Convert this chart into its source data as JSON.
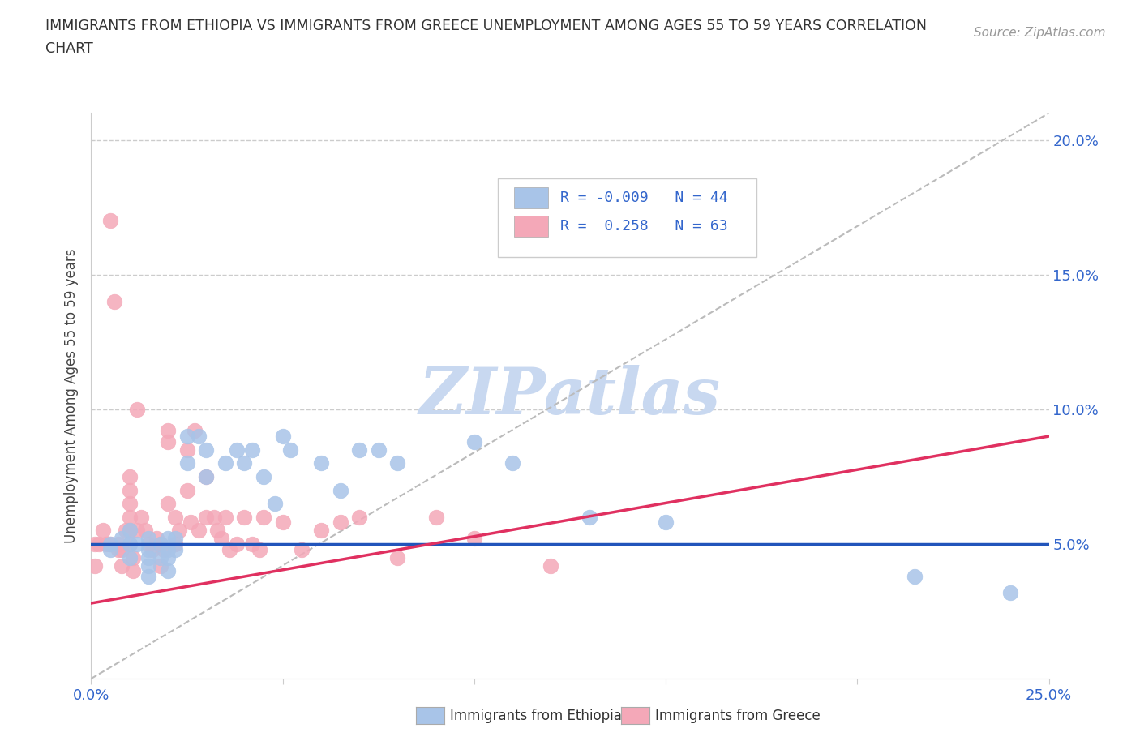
{
  "title_line1": "IMMIGRANTS FROM ETHIOPIA VS IMMIGRANTS FROM GREECE UNEMPLOYMENT AMONG AGES 55 TO 59 YEARS CORRELATION",
  "title_line2": "CHART",
  "source": "Source: ZipAtlas.com",
  "ylabel": "Unemployment Among Ages 55 to 59 years",
  "xlim": [
    0.0,
    0.25
  ],
  "ylim": [
    0.0,
    0.21
  ],
  "xticks": [
    0.0,
    0.05,
    0.1,
    0.15,
    0.2,
    0.25
  ],
  "yticks": [
    0.05,
    0.1,
    0.15,
    0.2
  ],
  "ytick_labels": [
    "5.0%",
    "10.0%",
    "15.0%",
    "20.0%"
  ],
  "xtick_labels_bottom": [
    "0.0%",
    "",
    "",
    "",
    "",
    "25.0%"
  ],
  "ethiopia_color": "#A8C4E8",
  "greece_color": "#F4A8B8",
  "ethiopia_line_color": "#2255BB",
  "greece_line_color": "#E03060",
  "diag_color": "#BBBBBB",
  "watermark": "ZIPatlas",
  "watermark_color": "#C8D8F0",
  "legend_label_ethiopia": "Immigrants from Ethiopia",
  "legend_label_greece": "Immigrants from Greece",
  "ethiopia_x": [
    0.005,
    0.005,
    0.008,
    0.01,
    0.01,
    0.01,
    0.012,
    0.015,
    0.015,
    0.015,
    0.015,
    0.015,
    0.018,
    0.018,
    0.02,
    0.02,
    0.02,
    0.02,
    0.022,
    0.022,
    0.025,
    0.025,
    0.028,
    0.03,
    0.03,
    0.035,
    0.038,
    0.04,
    0.042,
    0.045,
    0.048,
    0.05,
    0.052,
    0.06,
    0.065,
    0.07,
    0.075,
    0.08,
    0.1,
    0.11,
    0.13,
    0.15,
    0.215,
    0.24
  ],
  "ethiopia_y": [
    0.05,
    0.048,
    0.052,
    0.055,
    0.05,
    0.045,
    0.05,
    0.052,
    0.048,
    0.045,
    0.042,
    0.038,
    0.05,
    0.045,
    0.052,
    0.048,
    0.045,
    0.04,
    0.052,
    0.048,
    0.08,
    0.09,
    0.09,
    0.085,
    0.075,
    0.08,
    0.085,
    0.08,
    0.085,
    0.075,
    0.065,
    0.09,
    0.085,
    0.08,
    0.07,
    0.085,
    0.085,
    0.08,
    0.088,
    0.08,
    0.06,
    0.058,
    0.038,
    0.032
  ],
  "greece_x": [
    0.001,
    0.001,
    0.002,
    0.003,
    0.004,
    0.005,
    0.005,
    0.006,
    0.007,
    0.007,
    0.008,
    0.008,
    0.009,
    0.01,
    0.01,
    0.01,
    0.01,
    0.01,
    0.01,
    0.011,
    0.011,
    0.012,
    0.012,
    0.013,
    0.014,
    0.015,
    0.016,
    0.017,
    0.018,
    0.018,
    0.019,
    0.02,
    0.02,
    0.02,
    0.022,
    0.022,
    0.023,
    0.025,
    0.025,
    0.026,
    0.027,
    0.028,
    0.03,
    0.03,
    0.032,
    0.033,
    0.034,
    0.035,
    0.036,
    0.038,
    0.04,
    0.042,
    0.044,
    0.045,
    0.05,
    0.055,
    0.06,
    0.065,
    0.07,
    0.08,
    0.09,
    0.1,
    0.12
  ],
  "greece_y": [
    0.05,
    0.042,
    0.05,
    0.055,
    0.05,
    0.17,
    0.05,
    0.14,
    0.05,
    0.048,
    0.048,
    0.042,
    0.055,
    0.075,
    0.07,
    0.065,
    0.06,
    0.055,
    0.05,
    0.045,
    0.04,
    0.055,
    0.1,
    0.06,
    0.055,
    0.05,
    0.048,
    0.052,
    0.05,
    0.042,
    0.048,
    0.092,
    0.088,
    0.065,
    0.06,
    0.05,
    0.055,
    0.085,
    0.07,
    0.058,
    0.092,
    0.055,
    0.075,
    0.06,
    0.06,
    0.055,
    0.052,
    0.06,
    0.048,
    0.05,
    0.06,
    0.05,
    0.048,
    0.06,
    0.058,
    0.048,
    0.055,
    0.058,
    0.06,
    0.045,
    0.06,
    0.052,
    0.042
  ]
}
